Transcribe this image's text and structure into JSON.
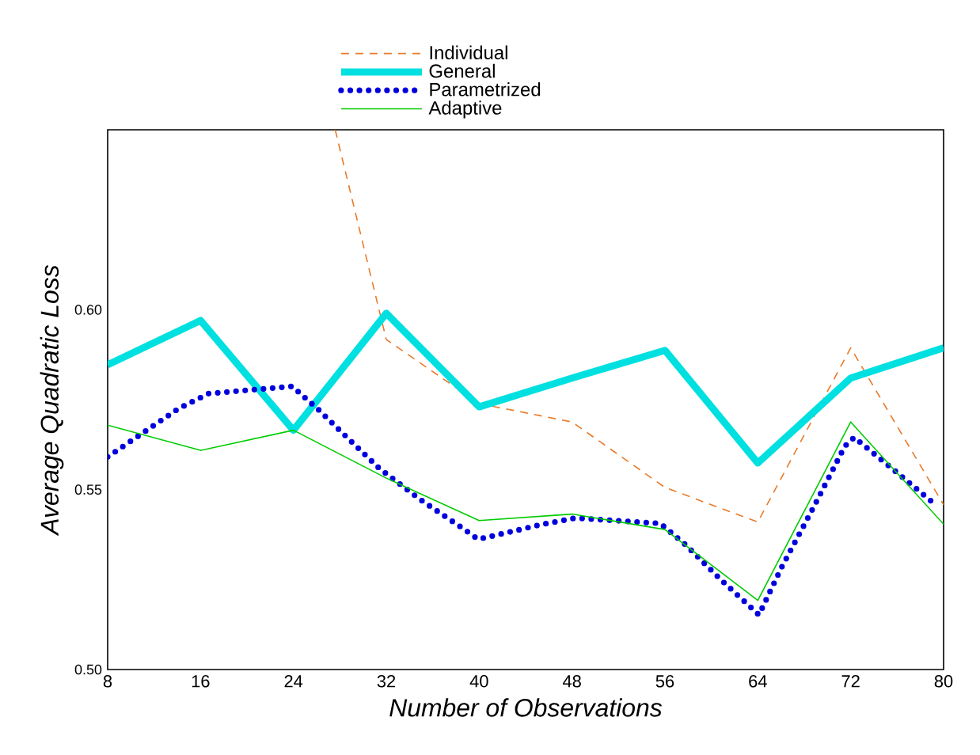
{
  "chart_data": {
    "type": "line",
    "xlabel": "Number of Observations",
    "ylabel": "Average Quadratic Loss",
    "x": [
      8,
      16,
      24,
      32,
      40,
      48,
      56,
      64,
      72,
      80
    ],
    "series": [
      {
        "name": "Individual",
        "color": "#e87a2a",
        "line_style": "dashed",
        "x": [
          27.6,
          32,
          40,
          48,
          56,
          64,
          72,
          80
        ],
        "values": [
          0.65,
          0.5917,
          0.5739,
          0.5688,
          0.5506,
          0.541,
          0.5894,
          0.5458
        ]
      },
      {
        "name": "General",
        "color": "#00e0e0",
        "line_style": "solid",
        "values": [
          0.5847,
          0.597,
          0.5665,
          0.599,
          0.573,
          0.581,
          0.5887,
          0.5574,
          0.581,
          0.5894
        ]
      },
      {
        "name": "Parametrized",
        "color": "#0000dd",
        "line_style": "dotted",
        "x": [
          8,
          14.1,
          16.7,
          19.6,
          23.9,
          26.2,
          28.3,
          31.4,
          34.9,
          38.6,
          39.9,
          41.0,
          45.5,
          48.3,
          55.6,
          57.8,
          60.9,
          64.1,
          66.0,
          68.8,
          71.5,
          72.3,
          75.7,
          79.2
        ],
        "values": [
          0.5591,
          0.5725,
          0.5767,
          0.5775,
          0.5787,
          0.5721,
          0.5655,
          0.5559,
          0.5473,
          0.5392,
          0.5362,
          0.537,
          0.5404,
          0.5421,
          0.5406,
          0.5346,
          0.5247,
          0.5152,
          0.5281,
          0.5451,
          0.5621,
          0.5645,
          0.5555,
          0.5461
        ]
      },
      {
        "name": "Adaptive",
        "color": "#00cc00",
        "line_style": "solid",
        "values": [
          0.5679,
          0.5609,
          0.5665,
          0.5532,
          0.5414,
          0.5432,
          0.5389,
          0.5192,
          0.5688,
          0.5404
        ]
      }
    ],
    "xlim": [
      8,
      80
    ],
    "ylim": [
      0.5,
      0.65
    ],
    "xticks": [
      8,
      16,
      24,
      32,
      40,
      48,
      56,
      64,
      72,
      80
    ],
    "yticks": [
      {
        "value": 0.5,
        "label": "0.50"
      },
      {
        "value": 0.55,
        "label": "0.55"
      },
      {
        "value": 0.6,
        "label": "0.60"
      }
    ],
    "grid": false,
    "legend": "top left",
    "marker": "none"
  }
}
